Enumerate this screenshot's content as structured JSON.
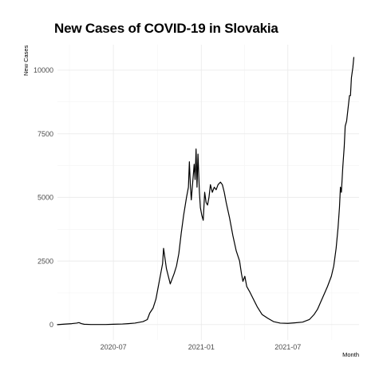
{
  "chart_data": {
    "type": "line",
    "title": "New Cases of COVID-19 in Slovakia",
    "xlabel": "Month",
    "ylabel": "New Cases",
    "x_axis_type": "date",
    "xlim": [
      "2020-03-06",
      "2021-11-27"
    ],
    "ylim": [
      -600,
      11000
    ],
    "grid": true,
    "x_ticks": [
      {
        "date": "2020-07-01",
        "label": "2020-07"
      },
      {
        "date": "2021-01-01",
        "label": "2021-01"
      },
      {
        "date": "2021-07-01",
        "label": "2021-07"
      }
    ],
    "y_ticks": [
      {
        "value": 0,
        "label": "0"
      },
      {
        "value": 2500,
        "label": "2500"
      },
      {
        "value": 5000,
        "label": "5000"
      },
      {
        "value": 7500,
        "label": "7500"
      },
      {
        "value": 10000,
        "label": "10000"
      }
    ],
    "series": [
      {
        "color": "#000000",
        "points": [
          [
            "2020-03-06",
            0
          ],
          [
            "2020-03-20",
            20
          ],
          [
            "2020-04-05",
            40
          ],
          [
            "2020-04-15",
            60
          ],
          [
            "2020-04-20",
            80
          ],
          [
            "2020-04-25",
            40
          ],
          [
            "2020-05-01",
            15
          ],
          [
            "2020-05-15",
            5
          ],
          [
            "2020-06-15",
            5
          ],
          [
            "2020-07-01",
            15
          ],
          [
            "2020-07-20",
            25
          ],
          [
            "2020-08-01",
            40
          ],
          [
            "2020-08-15",
            60
          ],
          [
            "2020-09-01",
            120
          ],
          [
            "2020-09-10",
            200
          ],
          [
            "2020-09-15",
            450
          ],
          [
            "2020-09-22",
            650
          ],
          [
            "2020-09-28",
            1000
          ],
          [
            "2020-10-03",
            1500
          ],
          [
            "2020-10-08",
            2000
          ],
          [
            "2020-10-12",
            2400
          ],
          [
            "2020-10-14",
            3000
          ],
          [
            "2020-10-17",
            2600
          ],
          [
            "2020-10-20",
            2200
          ],
          [
            "2020-10-24",
            1900
          ],
          [
            "2020-10-28",
            1600
          ],
          [
            "2020-11-01",
            1800
          ],
          [
            "2020-11-05",
            2000
          ],
          [
            "2020-11-10",
            2300
          ],
          [
            "2020-11-15",
            2800
          ],
          [
            "2020-11-20",
            3600
          ],
          [
            "2020-11-25",
            4300
          ],
          [
            "2020-12-01",
            5000
          ],
          [
            "2020-12-05",
            5400
          ],
          [
            "2020-12-07",
            6400
          ],
          [
            "2020-12-09",
            5500
          ],
          [
            "2020-12-11",
            4900
          ],
          [
            "2020-12-14",
            5600
          ],
          [
            "2020-12-17",
            6300
          ],
          [
            "2020-12-19",
            5700
          ],
          [
            "2020-12-21",
            6900
          ],
          [
            "2020-12-23",
            5400
          ],
          [
            "2020-12-25",
            6700
          ],
          [
            "2020-12-28",
            5200
          ],
          [
            "2020-12-30",
            4600
          ],
          [
            "2021-01-02",
            4300
          ],
          [
            "2021-01-05",
            4100
          ],
          [
            "2021-01-08",
            5200
          ],
          [
            "2021-01-11",
            4800
          ],
          [
            "2021-01-14",
            4700
          ],
          [
            "2021-01-17",
            5000
          ],
          [
            "2021-01-20",
            5500
          ],
          [
            "2021-01-24",
            5200
          ],
          [
            "2021-01-28",
            5400
          ],
          [
            "2021-02-01",
            5300
          ],
          [
            "2021-02-05",
            5500
          ],
          [
            "2021-02-10",
            5600
          ],
          [
            "2021-02-14",
            5500
          ],
          [
            "2021-02-18",
            5200
          ],
          [
            "2021-02-22",
            4800
          ],
          [
            "2021-03-01",
            4200
          ],
          [
            "2021-03-08",
            3500
          ],
          [
            "2021-03-15",
            2900
          ],
          [
            "2021-03-22",
            2500
          ],
          [
            "2021-03-26",
            2000
          ],
          [
            "2021-03-29",
            1700
          ],
          [
            "2021-04-02",
            1900
          ],
          [
            "2021-04-06",
            1500
          ],
          [
            "2021-04-12",
            1300
          ],
          [
            "2021-04-20",
            1000
          ],
          [
            "2021-04-28",
            700
          ],
          [
            "2021-05-08",
            400
          ],
          [
            "2021-05-20",
            250
          ],
          [
            "2021-06-01",
            120
          ],
          [
            "2021-06-15",
            60
          ],
          [
            "2021-07-01",
            50
          ],
          [
            "2021-07-15",
            70
          ],
          [
            "2021-08-01",
            100
          ],
          [
            "2021-08-15",
            200
          ],
          [
            "2021-08-25",
            400
          ],
          [
            "2021-09-01",
            600
          ],
          [
            "2021-09-08",
            900
          ],
          [
            "2021-09-15",
            1200
          ],
          [
            "2021-09-22",
            1500
          ],
          [
            "2021-09-30",
            1900
          ],
          [
            "2021-10-05",
            2300
          ],
          [
            "2021-10-10",
            3000
          ],
          [
            "2021-10-14",
            3800
          ],
          [
            "2021-10-17",
            4600
          ],
          [
            "2021-10-19",
            5400
          ],
          [
            "2021-10-21",
            5200
          ],
          [
            "2021-10-24",
            6200
          ],
          [
            "2021-10-27",
            7000
          ],
          [
            "2021-10-29",
            7800
          ],
          [
            "2021-11-01",
            8000
          ],
          [
            "2021-11-04",
            8500
          ],
          [
            "2021-11-07",
            9000
          ],
          [
            "2021-11-09",
            9000
          ],
          [
            "2021-11-11",
            9700
          ],
          [
            "2021-11-14",
            10100
          ],
          [
            "2021-11-16",
            10500
          ]
        ]
      }
    ]
  }
}
